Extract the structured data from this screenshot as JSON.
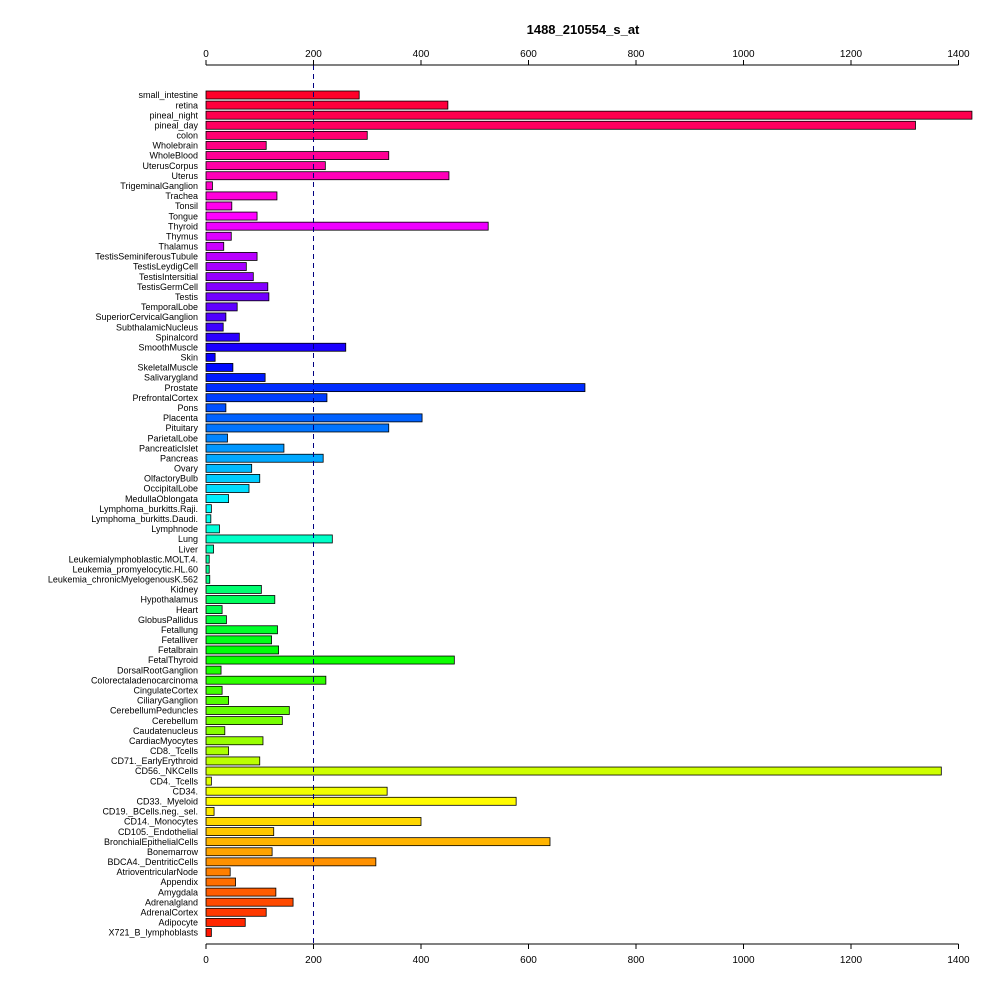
{
  "chart_data": {
    "type": "bar",
    "orientation": "horizontal",
    "title": "1488_210554_s_at",
    "xlabel": "",
    "ylabel": "",
    "xlim": [
      0,
      1430
    ],
    "xticks": [
      0,
      200,
      400,
      600,
      800,
      1000,
      1200,
      1400
    ],
    "xtick_labels": [
      "0",
      "200",
      "400",
      "600",
      "800",
      "1000",
      "1200",
      "1400"
    ],
    "axes_shown": [
      "top",
      "bottom"
    ],
    "reference_line": {
      "x": 200,
      "style": "dashed",
      "color": "#000080"
    },
    "color_scheme": "rainbow (red at top through magenta, purple, blue, cyan, green, yellow, orange, red at bottom)",
    "categories": [
      "small_intestine",
      "retina",
      "pineal_night",
      "pineal_day",
      "colon",
      "Wholebrain",
      "WholeBlood",
      "UterusCorpus",
      "Uterus",
      "TrigeminalGanglion",
      "Trachea",
      "Tonsil",
      "Tongue",
      "Thyroid",
      "Thymus",
      "Thalamus",
      "TestisSeminiferousTubule",
      "TestisLeydigCell",
      "TestisIntersitial",
      "TestisGermCell",
      "Testis",
      "TemporalLobe",
      "SuperiorCervicalGanglion",
      "SubthalamicNucleus",
      "Spinalcord",
      "SmoothMuscle",
      "Skin",
      "SkeletalMuscle",
      "Salivarygland",
      "Prostate",
      "PrefrontalCortex",
      "Pons",
      "Placenta",
      "Pituitary",
      "ParietalLobe",
      "PancreaticIslet",
      "Pancreas",
      "Ovary",
      "OlfactoryBulb",
      "OccipitalLobe",
      "MedullaOblongata",
      "Lymphoma_burkitts.Raji.",
      "Lymphoma_burkitts.Daudi.",
      "Lymphnode",
      "Lung",
      "Liver",
      "Leukemialymphoblastic.MOLT.4.",
      "Leukemia_promyelocytic.HL.60",
      "Leukemia_chronicMyelogenousK.562",
      "Kidney",
      "Hypothalamus",
      "Heart",
      "GlobusPallidus",
      "Fetallung",
      "Fetalliver",
      "Fetalbrain",
      "FetalThyroid",
      "DorsalRootGanglion",
      "Colorectaladenocarcinoma",
      "CingulateCortex",
      "CiliaryGanglion",
      "CerebellumPeduncles",
      "Cerebellum",
      "Caudatenucleus",
      "CardiacMyocytes",
      "CD8._Tcells",
      "CD71._EarlyErythroid",
      "CD56._NKCells",
      "CD4._Tcells",
      "CD34.",
      "CD33._Myeloid",
      "CD19._BCells.neg._sel.",
      "CD14._Monocytes",
      "CD105._Endothelial",
      "BronchialEpithelialCells",
      "Bonemarrow",
      "BDCA4._DentriticCells",
      "AtrioventricularNode",
      "Appendix",
      "Amygdala",
      "Adrenalgland",
      "AdrenalCortex",
      "Adipocyte",
      "X721_B_lymphoblasts"
    ],
    "values": [
      285,
      450,
      1425,
      1320,
      300,
      112,
      340,
      222,
      452,
      12,
      132,
      48,
      95,
      525,
      47,
      33,
      95,
      75,
      88,
      115,
      117,
      58,
      37,
      32,
      62,
      260,
      17,
      50,
      110,
      705,
      225,
      37,
      402,
      340,
      40,
      145,
      218,
      85,
      100,
      80,
      42,
      10,
      9,
      25,
      235,
      14,
      6,
      6,
      7,
      103,
      128,
      30,
      38,
      133,
      122,
      135,
      462,
      28,
      223,
      30,
      42,
      155,
      142,
      35,
      106,
      42,
      100,
      1368,
      10,
      337,
      577,
      15,
      400,
      126,
      640,
      123,
      316,
      45,
      55,
      130,
      162,
      112,
      73,
      10
    ]
  }
}
